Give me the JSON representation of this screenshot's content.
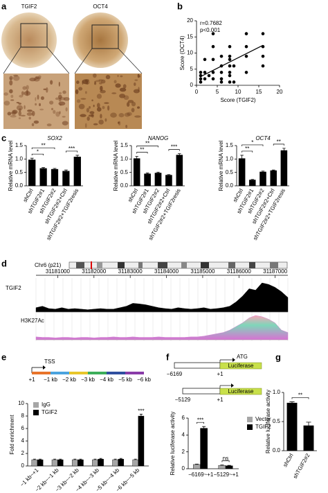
{
  "panel_labels": [
    "a",
    "b",
    "c",
    "d",
    "e",
    "f",
    "g"
  ],
  "panel_a": {
    "images": [
      "TGIF2",
      "OCT4"
    ]
  },
  "chart_data": [
    {
      "type": "scatter",
      "annotations": [
        "r=0.7682",
        "p<0.001"
      ],
      "xlabel": "Score (TGIF2)",
      "ylabel": "Score (OCT4)",
      "x": [
        1,
        1,
        1,
        1,
        2,
        2,
        2,
        3,
        4,
        4,
        4,
        4,
        4,
        6,
        6,
        6,
        6,
        6,
        8,
        8,
        8,
        8,
        8,
        8,
        8,
        9,
        9,
        12,
        12,
        12,
        12,
        16,
        16,
        16,
        16
      ],
      "y": [
        1,
        2,
        3,
        4,
        2,
        4,
        8,
        3,
        2,
        4,
        8,
        12,
        16,
        1,
        2,
        4,
        6,
        9,
        1,
        3,
        4,
        6,
        8,
        9,
        12,
        1,
        6,
        4,
        9,
        12,
        16,
        6,
        9,
        12,
        16
      ],
      "trendline": {
        "x": [
          1,
          16
        ],
        "y": [
          2.7,
          12.4
        ]
      },
      "color": "#000000",
      "xlim": [
        0,
        20
      ],
      "ylim": [
        0,
        20
      ],
      "xticks": [
        0,
        5,
        10,
        15,
        20
      ],
      "yticks": [
        0,
        5,
        10,
        15,
        20
      ]
    },
    {
      "type": "bar",
      "title": "SOX2",
      "ylabel": "Relative mRNA level",
      "categories": [
        "shCtrl",
        "shTGIF2#1",
        "shTGIF2#2",
        "shTGIF2#2+Ctrl",
        "shTGIF2#2+TGIF2resis"
      ],
      "values": [
        0.97,
        0.65,
        0.62,
        0.55,
        1.08
      ],
      "errors": [
        0.06,
        0.03,
        0.03,
        0.04,
        0.06
      ],
      "color": "#000000",
      "ylim": [
        0,
        1.5
      ],
      "yticks": [
        {
          "value": 0,
          "label": "0.0"
        },
        {
          "value": 0.5,
          "label": "0.5"
        },
        {
          "value": 1,
          "label": "1.0"
        },
        {
          "value": 1.5,
          "label": "1.5"
        }
      ],
      "significance": [
        {
          "label": "*",
          "pair": [
            0,
            1
          ]
        },
        {
          "label": "**",
          "pair": [
            0,
            2
          ]
        },
        {
          "label": "***",
          "pair": [
            3,
            4
          ]
        }
      ]
    },
    {
      "type": "bar",
      "title": "NANOG",
      "ylabel": "Relative mRNA level",
      "categories": [
        "shCtrl",
        "shTGIF2#1",
        "shTGIF2#2",
        "shTGIF2#2+Ctrl",
        "shTGIF2#2+TGIF2resis"
      ],
      "values": [
        1.02,
        0.45,
        0.48,
        0.4,
        1.15
      ],
      "errors": [
        0.08,
        0.03,
        0.03,
        0.02,
        0.05
      ],
      "color": "#000000",
      "ylim": [
        0,
        1.5
      ],
      "yticks": [
        {
          "value": 0,
          "label": "0.0"
        },
        {
          "value": 0.5,
          "label": "0.5"
        },
        {
          "value": 1,
          "label": "1.0"
        },
        {
          "value": 1.5,
          "label": "1.5"
        }
      ],
      "significance": [
        {
          "label": "**",
          "pair": [
            0,
            1
          ]
        },
        {
          "label": "**",
          "pair": [
            0,
            2
          ]
        },
        {
          "label": "***",
          "pair": [
            3,
            4
          ]
        }
      ]
    },
    {
      "type": "bar",
      "title": "OCT4",
      "ylabel": "Relative mRNA level",
      "categories": [
        "shCtrl",
        "shTGIF2#1",
        "shTGIF2#2",
        "shTGIF2#2+Ctrl",
        "shTGIF2#2+TGIF2resis"
      ],
      "values": [
        1.02,
        0.22,
        0.52,
        0.57,
        1.32
      ],
      "errors": [
        0.12,
        0.02,
        0.03,
        0.02,
        0.08
      ],
      "color": "#000000",
      "ylim": [
        0,
        1.5
      ],
      "yticks": [
        {
          "value": 0,
          "label": "0.0"
        },
        {
          "value": 0.5,
          "label": "0.5"
        },
        {
          "value": 1,
          "label": "1.0"
        },
        {
          "value": 1.5,
          "label": "1.5"
        }
      ],
      "significance": [
        {
          "label": "**",
          "pair": [
            0,
            1
          ]
        },
        {
          "label": "*",
          "pair": [
            0,
            2
          ]
        },
        {
          "label": "**",
          "pair": [
            3,
            4
          ]
        }
      ]
    },
    {
      "type": "genome",
      "chromosome": "Chr6 (p21)",
      "xlim": [
        31180400,
        31187350
      ],
      "xticks": [
        31181000,
        31182000,
        31183000,
        31184000,
        31185000,
        31186000,
        31187000
      ],
      "series": [
        {
          "name": "TGIF2",
          "color": "#000000",
          "values": [
            0.15,
            0.2,
            0.12,
            0.1,
            0.15,
            0.1,
            0.12,
            0.1,
            0.08,
            0.1,
            0.12,
            0.1,
            0.1,
            0.15,
            0.2,
            0.3,
            0.28,
            0.25,
            0.2,
            0.15,
            0.12,
            0.1,
            0.15,
            0.12,
            0.1,
            0.12,
            0.15,
            0.1,
            0.12,
            0.15,
            0.2,
            0.35,
            0.55,
            0.8,
            0.75,
            1.0,
            0.95,
            0.85,
            0.7,
            0.5
          ]
        },
        {
          "name": "H3K27Ac",
          "color": "#d872d3",
          "values": [
            0.12,
            0.1,
            0.1,
            0.08,
            0.1,
            0.1,
            0.08,
            0.1,
            0.1,
            0.08,
            0.1,
            0.1,
            0.12,
            0.1,
            0.1,
            0.12,
            0.1,
            0.1,
            0.1,
            0.12,
            0.1,
            0.1,
            0.1,
            0.1,
            0.12,
            0.12,
            0.15,
            0.2,
            0.25,
            0.3,
            0.4,
            0.55,
            0.7,
            0.9,
            1.0,
            0.95,
            0.85,
            0.7,
            0.4,
            0.3
          ]
        }
      ]
    },
    {
      "type": "bar",
      "ylabel": "Fold enrichment",
      "legend": "upper left",
      "categories": [
        "−1 kb~+1",
        "−2 kb~−1 kb",
        "−3 kb~−2 kb",
        "−4 kb~−3 kb",
        "−5 kb~−4 kb",
        "−6 kb~−5 kb"
      ],
      "series": [
        {
          "name": "IgG",
          "color": "#a6a6a6",
          "values": [
            1,
            1,
            1,
            1,
            1,
            1
          ],
          "errors": [
            0.1,
            0.1,
            0.1,
            0.1,
            0.1,
            0.1
          ]
        },
        {
          "name": "TGIF2",
          "color": "#000000",
          "values": [
            1,
            1,
            1,
            1.1,
            1.1,
            8
          ],
          "errors": [
            0.1,
            0.1,
            0.1,
            0.1,
            0.1,
            0.3
          ]
        }
      ],
      "ylim": [
        0,
        10
      ],
      "yticks": [
        0,
        2,
        4,
        6,
        8,
        10
      ],
      "significance": [
        {
          "label": "***",
          "at": [
            1,
            5
          ]
        }
      ]
    },
    {
      "type": "bar",
      "ylabel": "Relative luciferase activity",
      "legend": "upper right",
      "categories": [
        "−6169~+1",
        "−5129~+1"
      ],
      "series": [
        {
          "name": "Vector",
          "color": "#a6a6a6",
          "values": [
            0.5,
            0.4
          ],
          "errors": [
            0.05,
            0.05
          ]
        },
        {
          "name": "TGIF2",
          "color": "#000000",
          "values": [
            4.8,
            0.35
          ],
          "errors": [
            0.2,
            0.05
          ]
        }
      ],
      "ylim": [
        0,
        6
      ],
      "yticks": [
        0,
        2,
        4,
        6
      ],
      "significance": [
        {
          "label": "***",
          "category": 0,
          "pair": [
            0,
            1
          ]
        },
        {
          "label": "ns",
          "category": 1,
          "pair": [
            0,
            1
          ]
        }
      ]
    },
    {
      "type": "bar",
      "ylabel": "Relative luciferase activity",
      "categories": [
        "shCtrl",
        "shTGIF2#2"
      ],
      "values": [
        0.82,
        0.43
      ],
      "errors": [
        0.02,
        0.06
      ],
      "color": "#000000",
      "ylim": [
        0,
        1
      ],
      "yticks": [
        {
          "value": 0,
          "label": "0.0"
        },
        {
          "value": 0.5,
          "label": "0.5"
        },
        {
          "value": 1,
          "label": "1.0"
        }
      ],
      "significance": [
        {
          "label": "**",
          "pair": [
            0,
            1
          ]
        }
      ]
    }
  ],
  "diagram_e": {
    "marker": "TSS",
    "labels": [
      "+1",
      "−1 kb",
      "−2 kb",
      "−3 kb",
      "−4 kb",
      "−5 kb",
      "−6 kb"
    ]
  },
  "diagram_f": {
    "constructs": [
      {
        "start": "−6169",
        "end": "+1",
        "atg": "ATG",
        "reporter": "Luciferase"
      },
      {
        "start": "−5129",
        "end": "+1",
        "reporter": "Luciferase"
      }
    ]
  }
}
